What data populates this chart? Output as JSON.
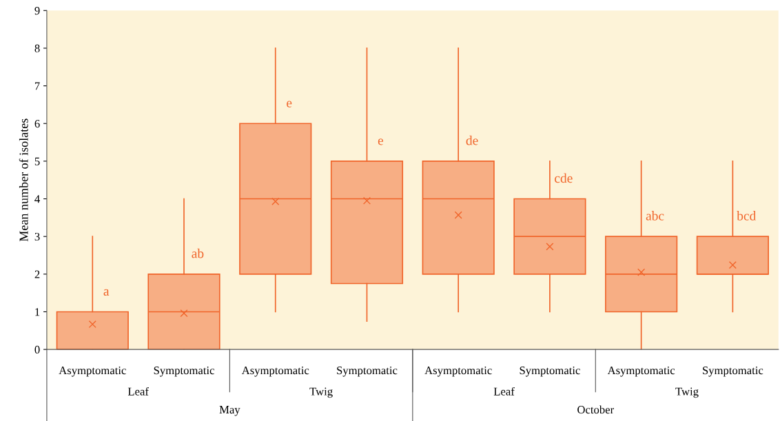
{
  "chart_data": {
    "type": "box",
    "ylabel": "Mean number of isolates",
    "ylim": [
      0,
      9
    ],
    "yticks": [
      0,
      1,
      2,
      3,
      4,
      5,
      6,
      7,
      8,
      9
    ],
    "grid": false,
    "categories": [
      "Asymptomatic",
      "Symptomatic",
      "Asymptomatic",
      "Symptomatic",
      "Asymptomatic",
      "Symptomatic",
      "Asymptomatic",
      "Symptomatic"
    ],
    "series": [
      {
        "color": "#f7ae84",
        "boxes": [
          {
            "low": 0,
            "q1": 0,
            "median": 0,
            "q3": 1,
            "high": 3,
            "mean": 0.67
          },
          {
            "low": 0,
            "q1": 0,
            "median": 1,
            "q3": 2,
            "high": 4,
            "mean": 0.96
          },
          {
            "low": 1,
            "q1": 2,
            "median": 4,
            "q3": 6,
            "high": 8,
            "mean": 3.93
          },
          {
            "low": 0.75,
            "q1": 1.75,
            "median": 4,
            "q3": 5,
            "high": 8,
            "mean": 3.95
          },
          {
            "low": 1,
            "q1": 2,
            "median": 4,
            "q3": 5,
            "high": 8,
            "mean": 3.57
          },
          {
            "low": 1,
            "q1": 2,
            "median": 3,
            "q3": 4,
            "high": 5,
            "mean": 2.73
          },
          {
            "low": 0,
            "q1": 1,
            "median": 2,
            "q3": 3,
            "high": 5,
            "mean": 2.05
          },
          {
            "low": 1,
            "q1": 2,
            "median": 2,
            "q3": 3,
            "high": 5,
            "mean": 2.24
          }
        ]
      }
    ],
    "annotations": [
      "a",
      "ab",
      "e",
      "e",
      "de",
      "cde",
      "abc",
      "bcd",
      "Leaf",
      "Twig",
      "Leaf",
      "Twig",
      "May",
      "October"
    ]
  }
}
